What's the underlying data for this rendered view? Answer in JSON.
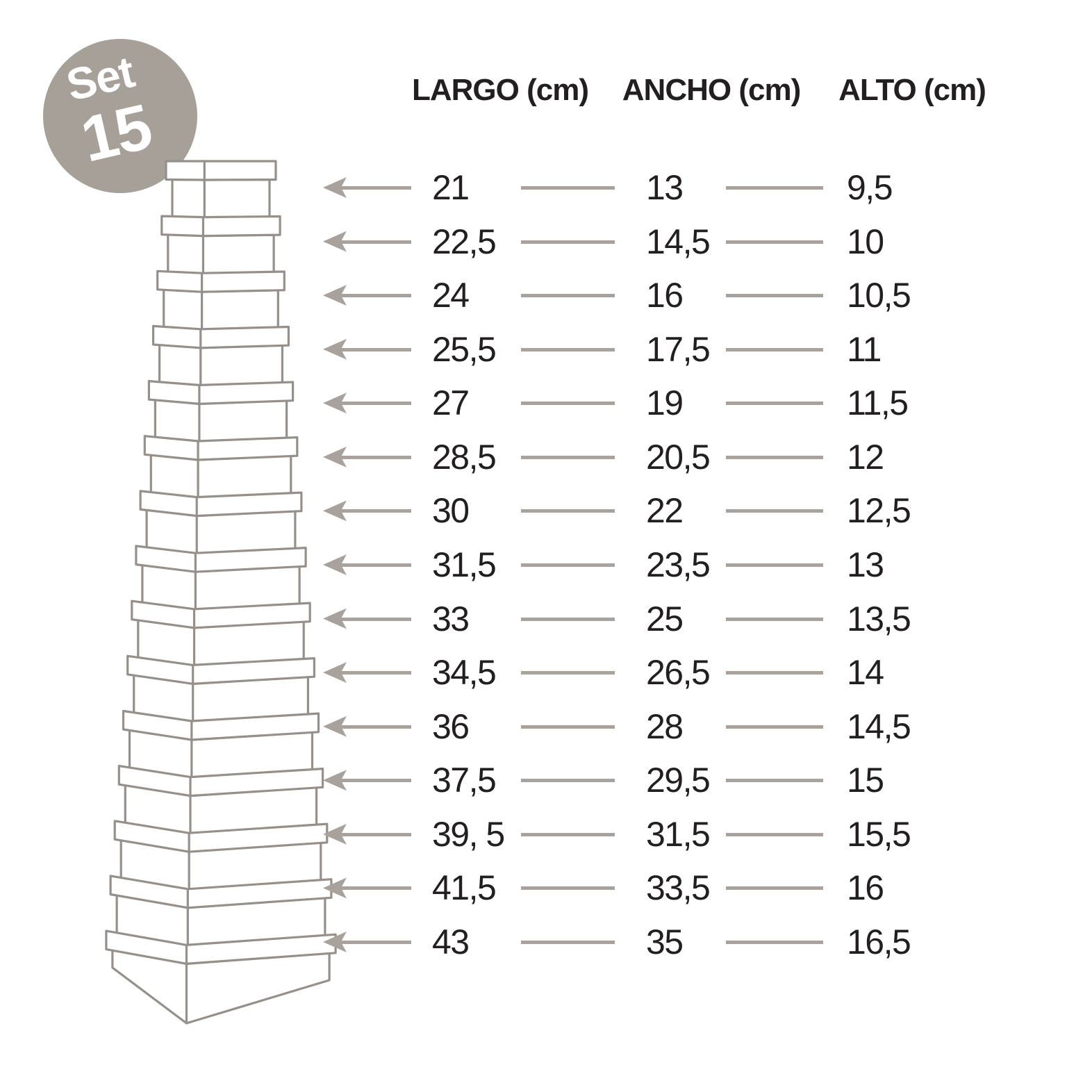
{
  "badge": {
    "label": "Set",
    "number": "15"
  },
  "colors": {
    "badge_bg": "#a7a099",
    "badge_text": "#ffffff",
    "box_line": "#968f8a",
    "arrow": "#a9a19b",
    "text": "#231f20"
  },
  "table": {
    "headers": [
      "LARGO (cm)",
      "ANCHO (cm)",
      "ALTO (cm)"
    ],
    "rows": [
      {
        "largo": "21",
        "ancho": "13",
        "alto": "9,5"
      },
      {
        "largo": "22,5",
        "ancho": "14,5",
        "alto": "10"
      },
      {
        "largo": "24",
        "ancho": "16",
        "alto": "10,5"
      },
      {
        "largo": "25,5",
        "ancho": "17,5",
        "alto": "11"
      },
      {
        "largo": "27",
        "ancho": "19",
        "alto": "11,5"
      },
      {
        "largo": "28,5",
        "ancho": "20,5",
        "alto": "12"
      },
      {
        "largo": "30",
        "ancho": "22",
        "alto": "12,5"
      },
      {
        "largo": "31,5",
        "ancho": "23,5",
        "alto": "13"
      },
      {
        "largo": "33",
        "ancho": "25",
        "alto": "13,5"
      },
      {
        "largo": "34,5",
        "ancho": "26,5",
        "alto": "14"
      },
      {
        "largo": "36",
        "ancho": "28",
        "alto": "14,5"
      },
      {
        "largo": "37,5",
        "ancho": "29,5",
        "alto": "15"
      },
      {
        "largo": "39, 5",
        "ancho": "31,5",
        "alto": "15,5"
      },
      {
        "largo": "41,5",
        "ancho": "33,5",
        "alto": "16"
      },
      {
        "largo": "43",
        "ancho": "35",
        "alto": "16,5"
      }
    ]
  },
  "illustration": {
    "description": "stack of 15 nested gift boxes with lids, smallest on top, largest at bottom",
    "box_count": 15
  }
}
